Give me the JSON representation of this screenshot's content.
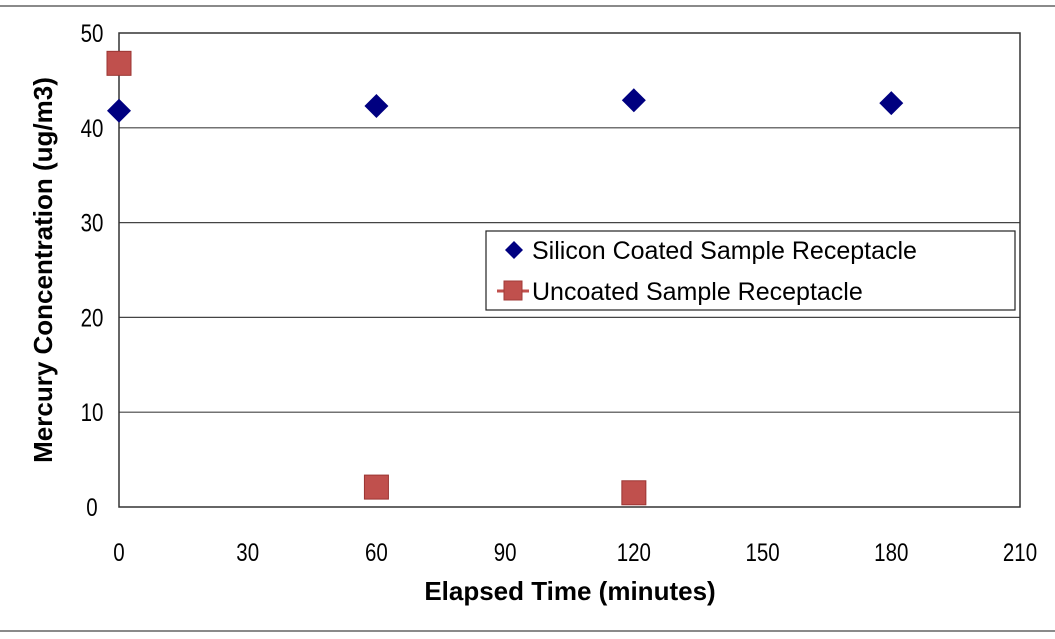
{
  "chart_data": {
    "type": "scatter",
    "title": "",
    "xlabel": "Elapsed Time (minutes)",
    "ylabel": "Mercury Concentration (ug/m3)",
    "xlim": [
      0,
      210
    ],
    "ylim": [
      0,
      50
    ],
    "xticks": [
      0,
      30,
      60,
      90,
      120,
      150,
      180,
      210
    ],
    "yticks": [
      0,
      10,
      20,
      30,
      40,
      50
    ],
    "grid": {
      "horizontal": true,
      "vertical": false
    },
    "legend_position": "inside-right-middle",
    "series": [
      {
        "name": "Silicon Coated Sample Receptacle",
        "marker": "diamond",
        "color": "#000080",
        "x": [
          0,
          60,
          120,
          180
        ],
        "y": [
          41.8,
          42.3,
          42.9,
          42.6
        ]
      },
      {
        "name": "Uncoated Sample Receptacle",
        "marker": "square",
        "color": "#c0504d",
        "x": [
          0,
          60,
          120
        ],
        "y": [
          46.8,
          2.1,
          1.5
        ]
      }
    ]
  },
  "legend": {
    "items": [
      {
        "label": "Silicon Coated Sample Receptacle",
        "marker": "diamond",
        "color": "#000080"
      },
      {
        "label": "Uncoated Sample Receptacle",
        "marker": "square-line",
        "color": "#c0504d"
      }
    ]
  }
}
